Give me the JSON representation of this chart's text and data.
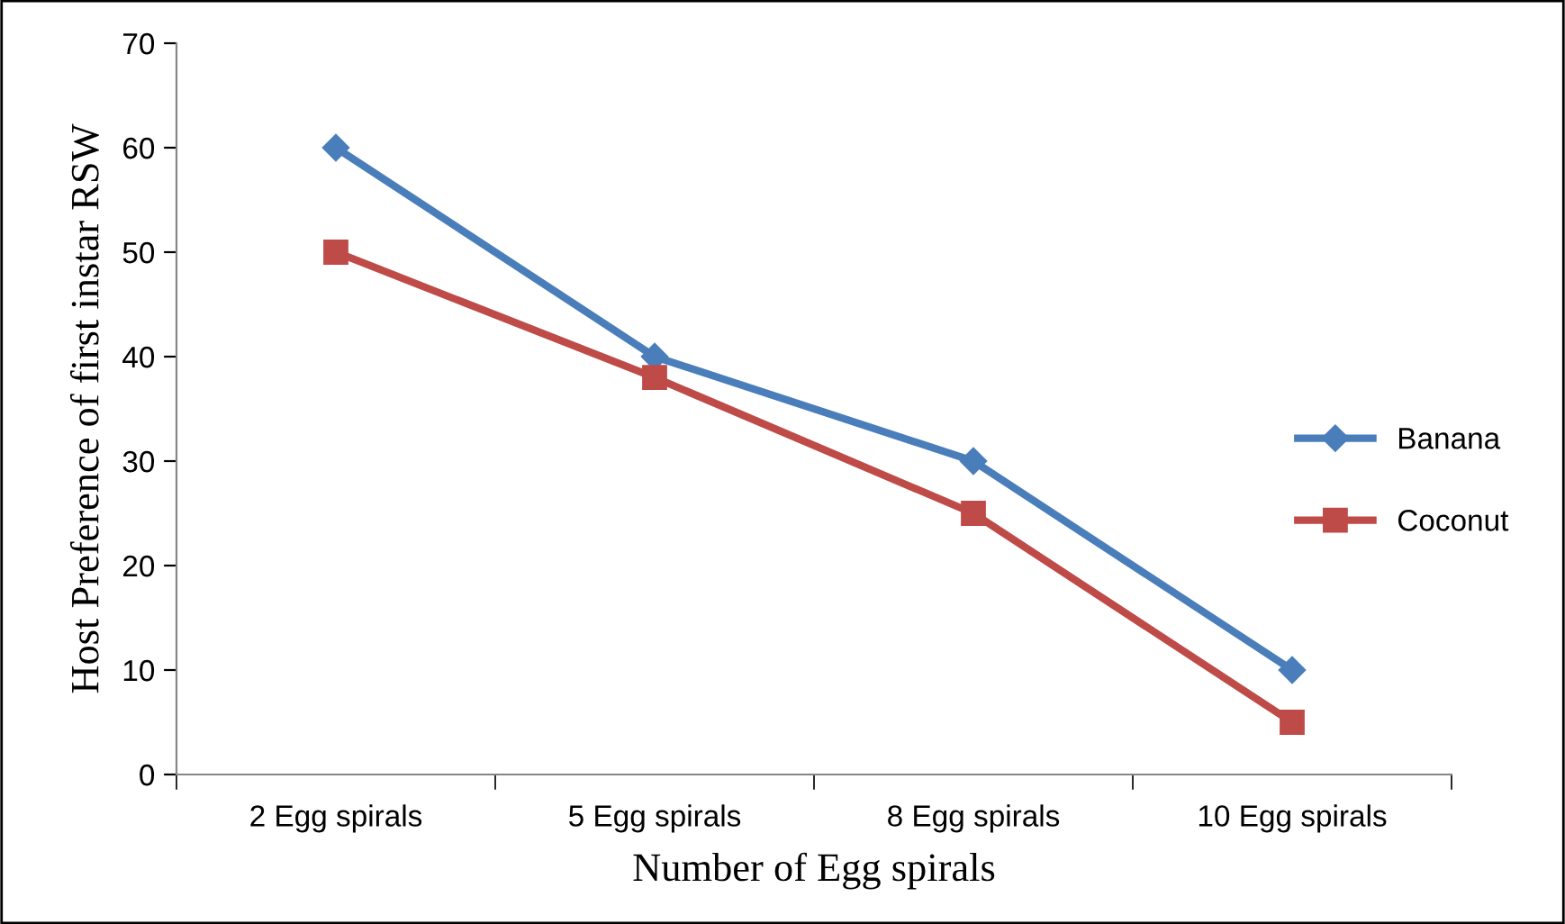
{
  "chart_data": {
    "type": "line",
    "xlabel": "Number of Egg spirals",
    "ylabel": "Host Preference of first instar RSW",
    "categories": [
      "2 Egg spirals",
      "5 Egg spirals",
      "8 Egg spirals",
      "10 Egg spirals"
    ],
    "series": [
      {
        "name": "Banana",
        "color": "#4a7ebb",
        "marker": "diamond",
        "values": [
          60,
          40,
          30,
          10
        ]
      },
      {
        "name": "Coconut",
        "color": "#be4b48",
        "marker": "square",
        "values": [
          50,
          38,
          25,
          5
        ]
      }
    ],
    "ylim": [
      0,
      70
    ],
    "yticks": [
      0,
      10,
      20,
      30,
      40,
      50,
      60,
      70
    ],
    "grid": false,
    "legend": "right",
    "line_style": "solid"
  }
}
